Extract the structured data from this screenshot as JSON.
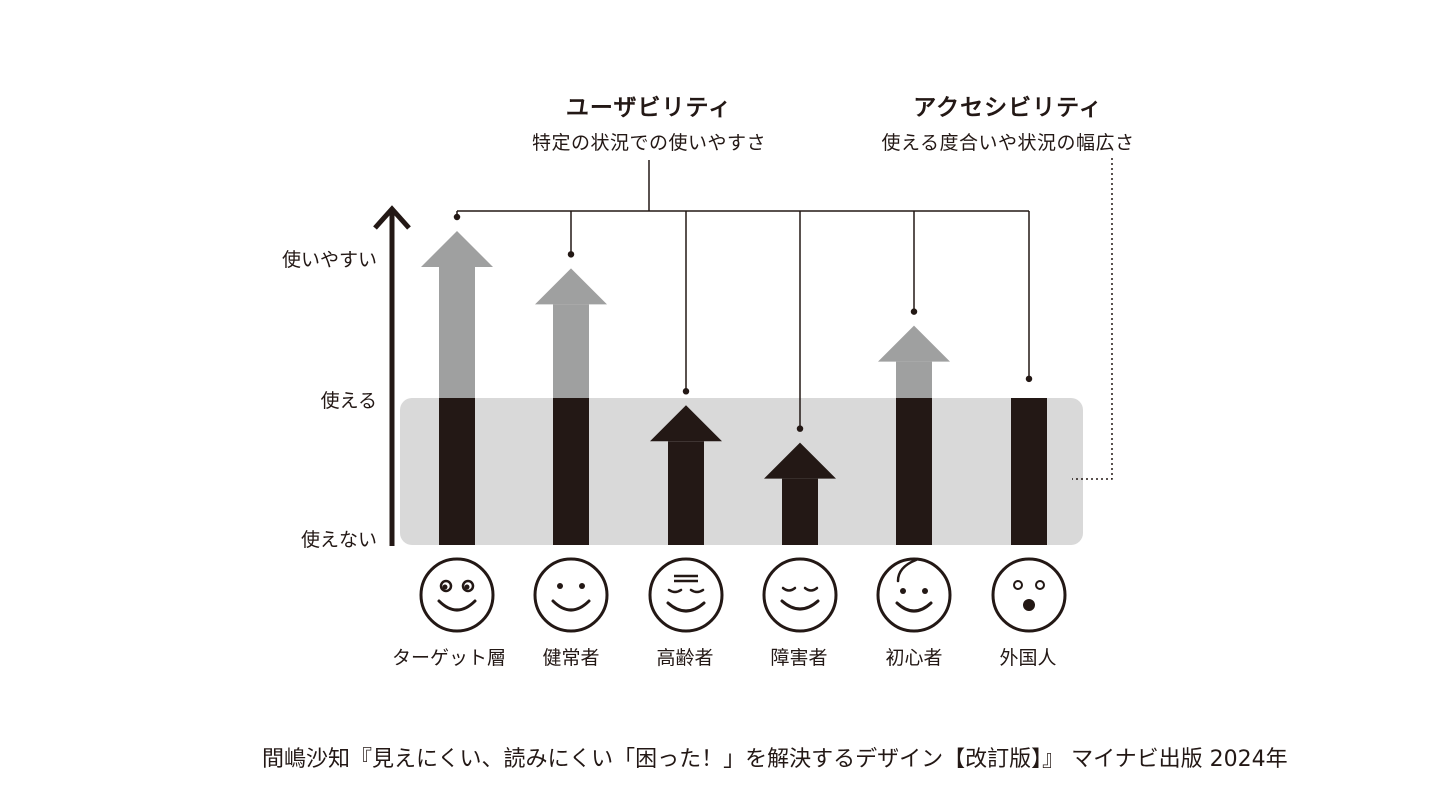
{
  "headings": {
    "usability": {
      "title": "ユーザビリティ",
      "subtitle": "特定の状況での使いやすさ"
    },
    "accessibility": {
      "title": "アクセシビリティ",
      "subtitle": "使える度合いや状況の幅広さ"
    }
  },
  "y_axis": {
    "levels": [
      "使いやすい",
      "使える",
      "使えない"
    ]
  },
  "groups": [
    {
      "label": "ターゲット層",
      "face": "target-face-icon",
      "level": 1.0
    },
    {
      "label": "健常者",
      "face": "healthy-face-icon",
      "level": 0.85
    },
    {
      "label": "高齢者",
      "face": "elderly-face-icon",
      "level": 0.3
    },
    {
      "label": "障害者",
      "face": "disabled-face-icon",
      "level": 0.15
    },
    {
      "label": "初心者",
      "face": "beginner-face-icon",
      "level": 0.62
    },
    {
      "label": "外国人",
      "face": "foreigner-face-icon",
      "level": 0.35
    }
  ],
  "colors": {
    "ink": "#231815",
    "gray_arrow": "#9fa0a0",
    "band": "#d9d9d9"
  },
  "caption": "間嶋沙知『見えにくい、読みにくい「困った！」を解決するデザイン【改訂版】』 マイナビ出版 2024年"
}
